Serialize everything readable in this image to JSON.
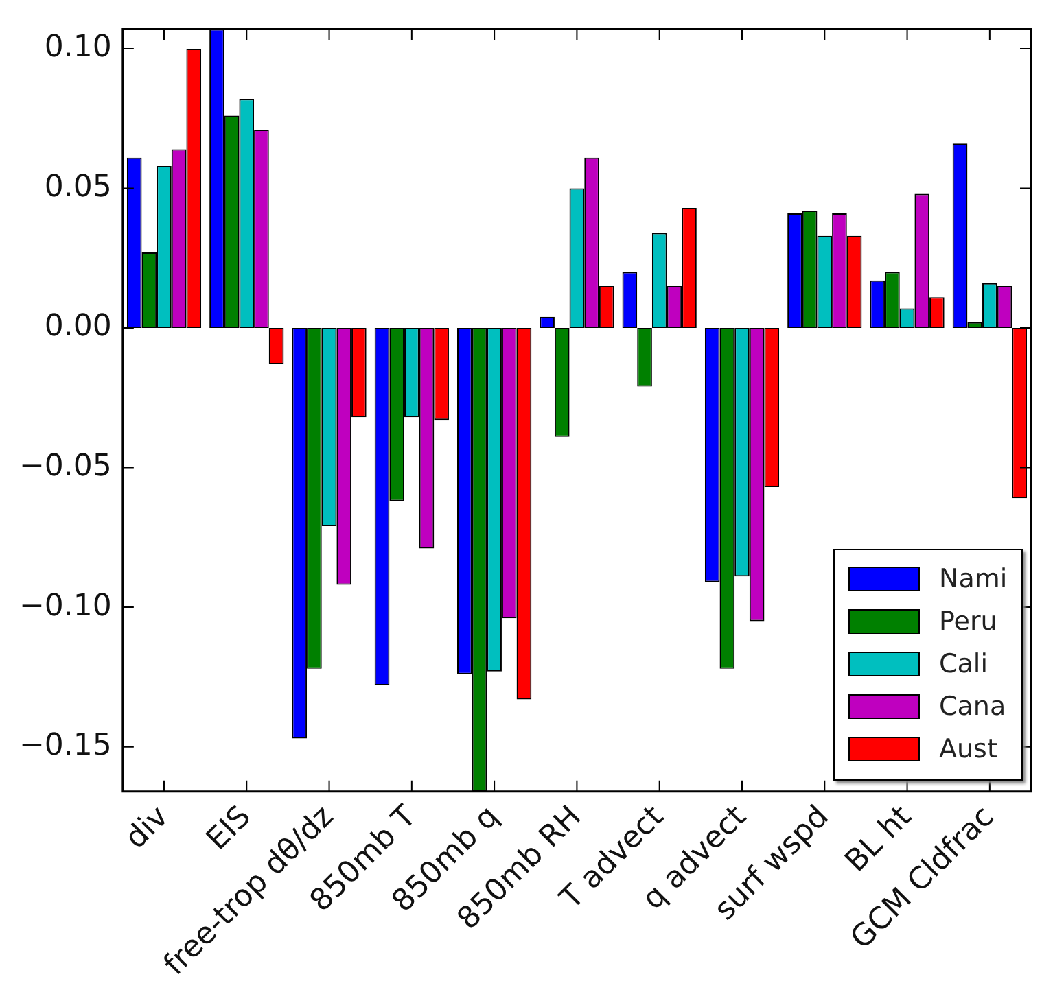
{
  "chart_data": {
    "type": "bar",
    "categories": [
      "div",
      "EIS",
      "free-trop dθ/dz",
      "850mb T",
      "850mb q",
      "850mb RH",
      "T advect",
      "q advect",
      "surf wspd",
      "BL ht",
      "GCM Cldfrac"
    ],
    "series": [
      {
        "name": "Nami",
        "color": "#0000ff",
        "values": [
          0.061,
          0.107,
          -0.147,
          -0.128,
          -0.124,
          0.004,
          0.02,
          -0.091,
          0.041,
          0.017,
          0.066
        ]
      },
      {
        "name": "Peru",
        "color": "#008000",
        "values": [
          0.027,
          0.076,
          -0.122,
          -0.062,
          -0.166,
          -0.039,
          -0.021,
          -0.122,
          0.042,
          0.02,
          0.002
        ]
      },
      {
        "name": "Cali",
        "color": "#00bfbf",
        "values": [
          0.058,
          0.082,
          -0.071,
          -0.032,
          -0.123,
          0.05,
          0.034,
          -0.089,
          0.033,
          0.007,
          0.016
        ]
      },
      {
        "name": "Cana",
        "color": "#bf00bf",
        "values": [
          0.064,
          0.071,
          -0.092,
          -0.079,
          -0.104,
          0.061,
          0.015,
          -0.105,
          0.041,
          0.048,
          0.015
        ]
      },
      {
        "name": "Aust",
        "color": "#ff0000",
        "values": [
          0.1,
          -0.013,
          -0.032,
          -0.033,
          -0.133,
          0.015,
          0.043,
          -0.057,
          0.033,
          0.011,
          -0.061
        ]
      }
    ],
    "ylim": [
      -0.166,
      0.107
    ],
    "yticks": [
      {
        "value": -0.15,
        "label": "−0.15"
      },
      {
        "value": -0.1,
        "label": "−0.10"
      },
      {
        "value": -0.05,
        "label": "−0.05"
      },
      {
        "value": 0,
        "label": "0.00"
      },
      {
        "value": 0.05,
        "label": "0.05"
      },
      {
        "value": 0.1,
        "label": "0.10"
      }
    ],
    "grid": false,
    "legend": "bottom right"
  }
}
